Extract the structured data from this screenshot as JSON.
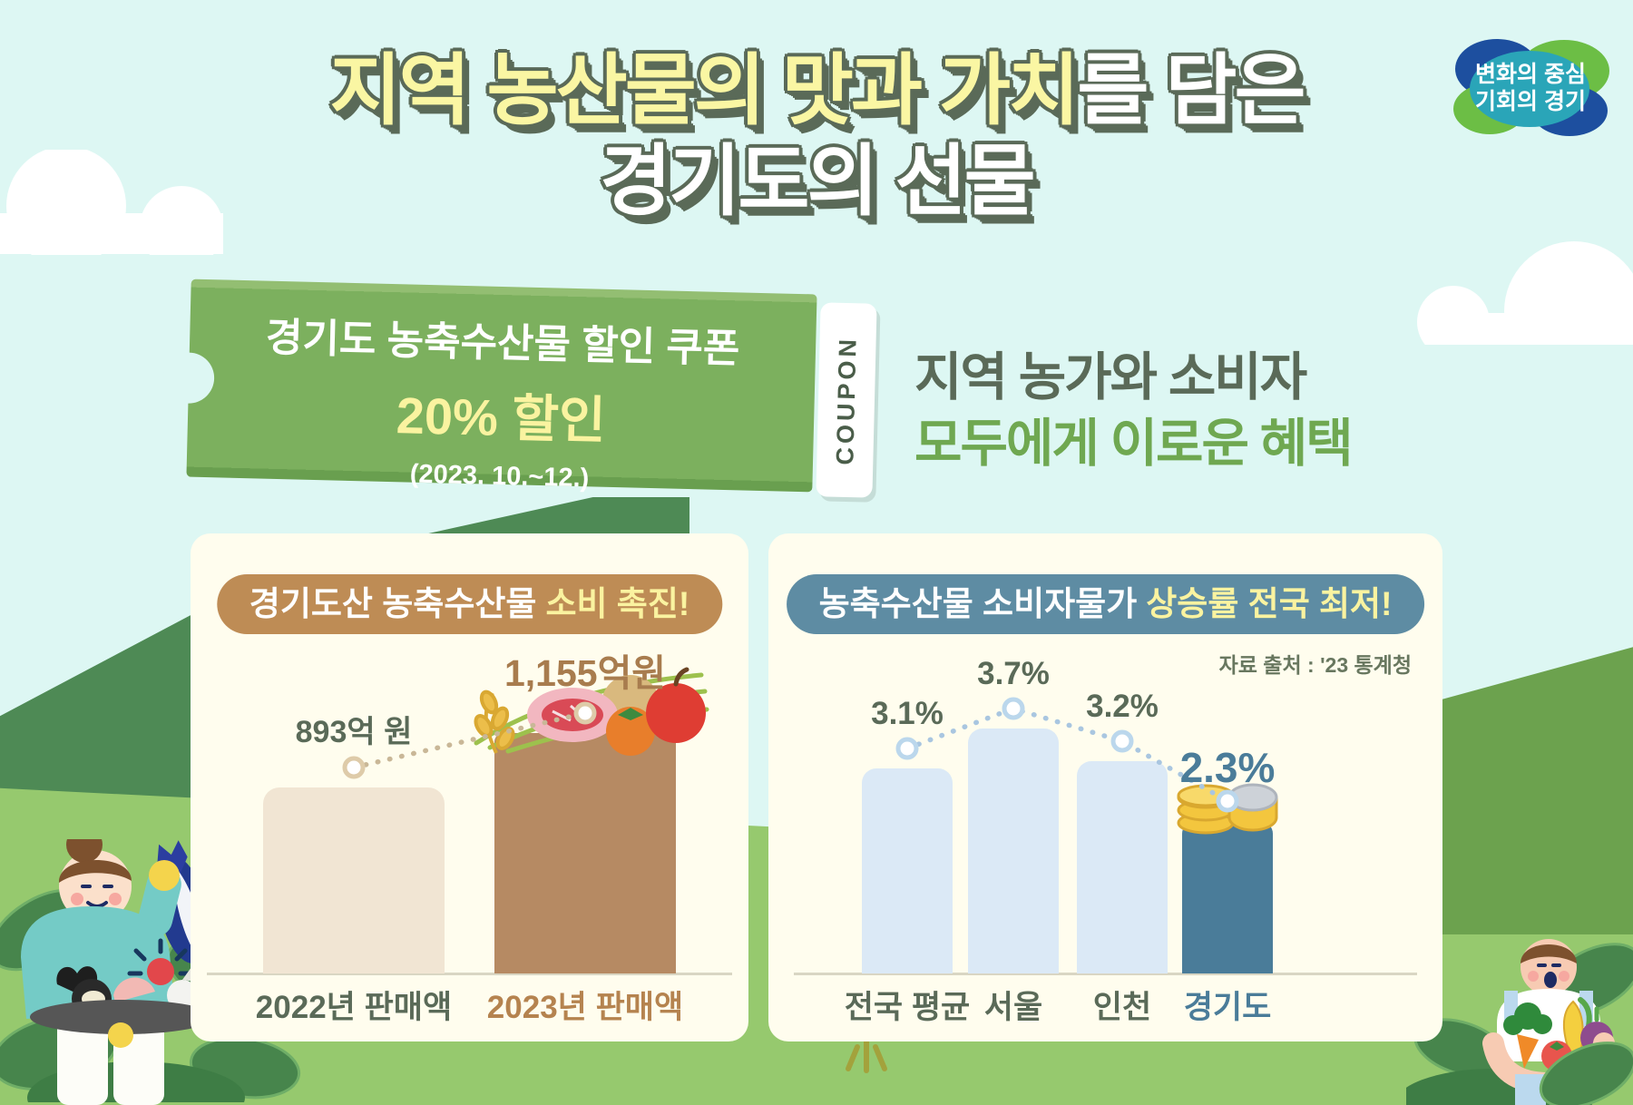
{
  "logo": {
    "line1": "변화의 중심",
    "line2": "기회의 경기"
  },
  "title": {
    "line1_highlight": "지역 농산물의 맛과 가치",
    "line1_rest": "를 담은",
    "line2": "경기도의 선물"
  },
  "coupon": {
    "label": "COUPON",
    "line1": "경기도 농축수산물 할인 쿠폰",
    "line2": "20% 할인",
    "line3": "(2023. 10.~12.)"
  },
  "benefit": {
    "line1": "지역 농가와 소비자",
    "line2": "모두에게 이로운 혜택"
  },
  "cards": {
    "left": {
      "title_white": "경기도산 농축수산물",
      "title_yellow": "소비 촉진!"
    },
    "right": {
      "title_white": "농축수산물 소비자물가",
      "title_yellow": "상승률 전국 최저!",
      "source": "자료 출처 : '23 통계청"
    }
  },
  "chart_data": [
    {
      "type": "bar",
      "title": "경기도산 농축수산물 소비 촉진!",
      "categories": [
        "2022년 판매액",
        "2023년 판매액"
      ],
      "values": [
        893,
        1155
      ],
      "unit": "억원",
      "value_labels": [
        "893억 원",
        "1,155억원"
      ],
      "ylim": [
        0,
        1250
      ],
      "grid": false,
      "legend": false,
      "highlight_index": 1,
      "annotations": "rising dotted trend line with open circle markers; 2023 bar drawn as grocery-bag with food illustration"
    },
    {
      "type": "bar",
      "title": "농축수산물 소비자물가 상승률 전국 최저!",
      "source": "자료 출처 : '23 통계청",
      "categories": [
        "전국 평균",
        "서울",
        "인천",
        "경기도"
      ],
      "values": [
        3.1,
        3.7,
        3.2,
        2.3
      ],
      "unit": "%",
      "value_labels": [
        "3.1%",
        "3.7%",
        "3.2%",
        "2.3%"
      ],
      "ylim": [
        0,
        4
      ],
      "grid": false,
      "legend": false,
      "highlight_index": 3,
      "annotations": "dotted trend line with open circle markers; 경기도 bar highlighted dark blue with coin stack illustration"
    }
  ],
  "colors": {
    "sky": "#DDF7F3",
    "field_green": "#96C96E",
    "coupon_green": "#7CB05E",
    "accent_yellow": "#FAF3A0",
    "outline_dark": "#5A6A58",
    "benefit_green": "#6FA851",
    "card_cream": "#FFFDEE",
    "pill_brown": "#BE8C55",
    "pill_blue": "#5E8CA3",
    "bar_beige": "#F1E5D3",
    "bar_bag_brown": "#B68A63",
    "bar_light_blue": "#DBE9F6",
    "bar_highlight_blue": "#4A7C99"
  }
}
